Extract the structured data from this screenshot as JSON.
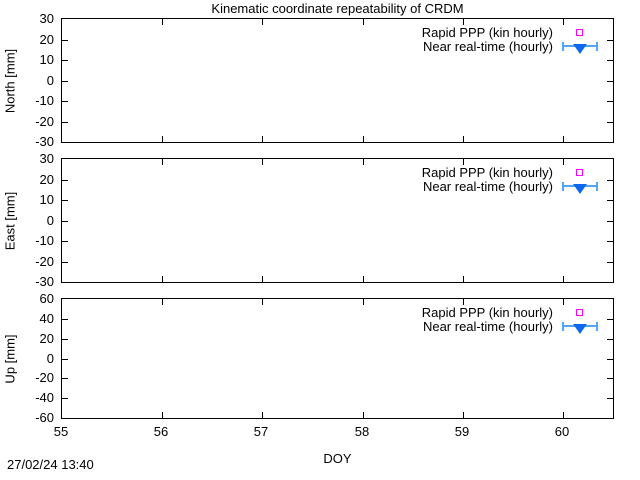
{
  "timestamp": "27/02/24 13:40",
  "colors": {
    "axis": "#000000",
    "rapid_ppp_marker": "#ff00ff",
    "near_real_time_fill": "#0e68ee",
    "near_real_time_errorbar": "#53a4f3",
    "background": "#ffffff"
  },
  "chart_data": {
    "type": "scatter",
    "title": "Kinematic coordinate repeatability of CRDM",
    "xlabel": "DOY",
    "xlim": [
      55,
      60.5
    ],
    "xticks": [
      55,
      56,
      57,
      58,
      59,
      60
    ],
    "grid": false,
    "legend_position": "top-right-inside",
    "panels": [
      {
        "ylabel": "North [mm]",
        "ylim": [
          -30,
          30
        ],
        "yticks": [
          30,
          20,
          10,
          0,
          -10,
          -20,
          -30
        ]
      },
      {
        "ylabel": "East [mm]",
        "ylim": [
          -30,
          30
        ],
        "yticks": [
          30,
          20,
          10,
          0,
          -10,
          -20,
          -30
        ]
      },
      {
        "ylabel": "Up [mm]",
        "ylim": [
          -60,
          60
        ],
        "yticks": [
          60,
          40,
          20,
          0,
          -20,
          -40,
          -60
        ]
      }
    ],
    "series": [
      {
        "name": "Rapid PPP (kin hourly)",
        "marker": "open-square",
        "color": "#ff00ff",
        "points": []
      },
      {
        "name": "Near real-time (hourly)",
        "marker": "filled-triangle-down-with-x-errorbar",
        "color": "#0e68ee",
        "points": []
      }
    ],
    "note": "No data points are visible inside the plotted range; only legend key samples are drawn in each panel."
  }
}
